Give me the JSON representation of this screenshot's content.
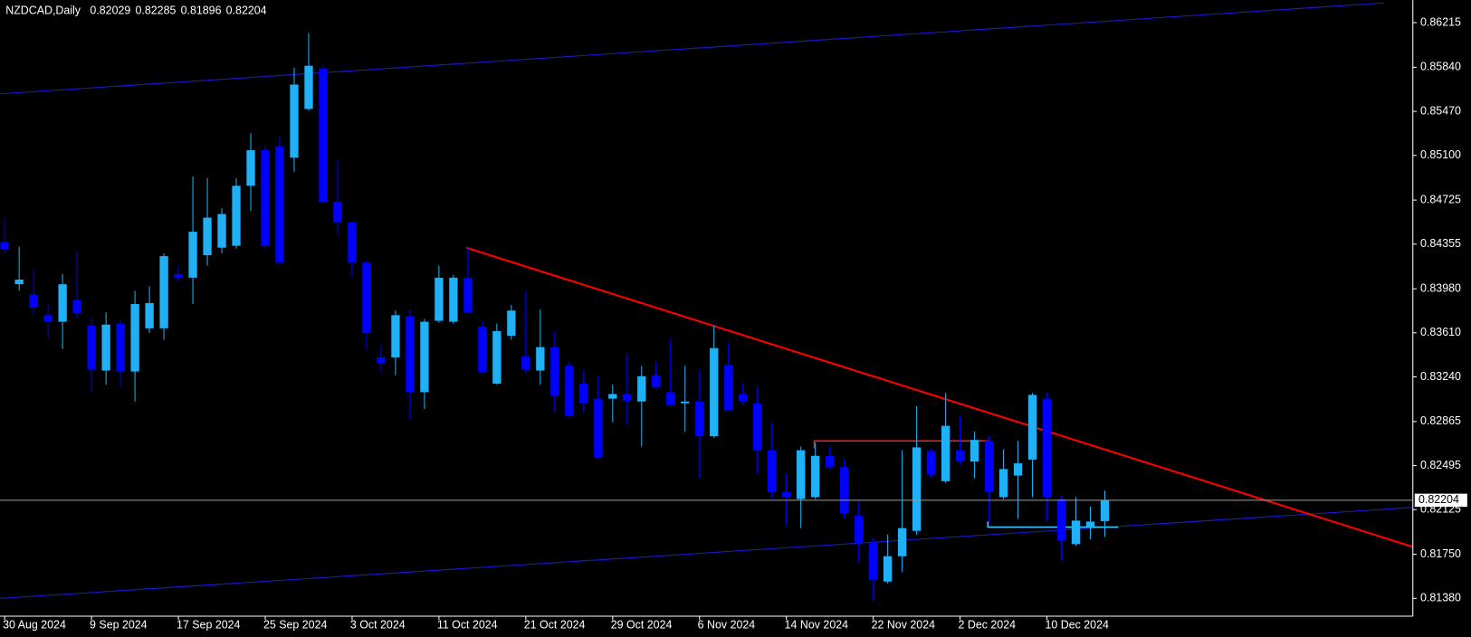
{
  "chart_data": {
    "type": "candlestick",
    "title": "NZDCAD,Daily",
    "x": [
      "30 Aug 2024",
      null,
      null,
      null,
      null,
      null,
      "9 Sep 2024",
      null,
      null,
      null,
      null,
      null,
      "17 Sep 2024",
      null,
      null,
      null,
      null,
      null,
      "25 Sep 2024",
      null,
      null,
      null,
      null,
      null,
      "3 Oct 2024",
      null,
      null,
      null,
      null,
      null,
      "11 Oct 2024",
      null,
      null,
      null,
      null,
      null,
      "21 Oct 2024",
      null,
      null,
      null,
      null,
      null,
      "29 Oct 2024",
      null,
      null,
      null,
      null,
      null,
      "6 Nov 2024",
      null,
      null,
      null,
      null,
      null,
      "14 Nov 2024",
      null,
      null,
      null,
      null,
      null,
      "22 Nov 2024",
      null,
      null,
      null,
      null,
      null,
      "2 Dec 2024",
      null,
      null,
      null,
      null,
      null,
      "10 Dec 2024",
      null,
      null,
      null,
      null
    ],
    "open": [
      0.84372,
      0.84018,
      0.83931,
      0.83758,
      0.83703,
      0.83884,
      0.83671,
      0.83293,
      0.83687,
      0.83285,
      0.83648,
      0.83648,
      0.84104,
      0.84073,
      0.84262,
      0.84325,
      0.84341,
      0.84845,
      0.85144,
      0.85175,
      0.85081,
      0.8549,
      0.85829,
      0.84711,
      0.84538,
      0.84199,
      0.83404,
      0.83404,
      0.8375,
      0.83112,
      0.83711,
      0.83703,
      0.84073,
      0.83663,
      0.83183,
      0.83585,
      0.83411,
      0.83293,
      0.8349,
      0.83333,
      0.83183,
      0.83057,
      0.83057,
      0.83096,
      0.83033,
      0.83254,
      0.83112,
      0.83018,
      0.83033,
      0.82742,
      0.83341,
      0.83096,
      0.83018,
      0.82624,
      0.8227,
      0.82214,
      0.8223,
      0.82577,
      0.82482,
      0.82073,
      0.81852,
      0.81521,
      0.81734,
      0.81947,
      0.82616,
      0.82364,
      0.82624,
      0.82529,
      0.82703,
      0.8223,
      0.82411,
      0.82545,
      0.83057,
      0.82214,
      0.81836,
      0.81978,
      0.82029
    ],
    "high": [
      0.84577,
      0.84333,
      0.84136,
      0.83845,
      0.84104,
      0.84293,
      0.83742,
      0.83782,
      0.83726,
      0.83963,
      0.84002,
      0.84278,
      0.84175,
      0.84923,
      0.84908,
      0.84656,
      0.84908,
      0.85286,
      0.85183,
      0.85262,
      0.85837,
      0.86128,
      0.85853,
      0.85065,
      0.84545,
      0.84215,
      0.83506,
      0.83797,
      0.83805,
      0.83726,
      0.84175,
      0.84097,
      0.84325,
      0.83703,
      0.83687,
      0.83845,
      0.83963,
      0.83805,
      0.83624,
      0.83372,
      0.83293,
      0.83254,
      0.83175,
      0.83435,
      0.83333,
      0.83372,
      0.83569,
      0.83333,
      0.83293,
      0.83671,
      0.8353,
      0.83191,
      0.83159,
      0.8286,
      0.82427,
      0.82655,
      0.82687,
      0.82655,
      0.82545,
      0.82191,
      0.81899,
      0.81915,
      0.82624,
      0.82994,
      0.8264,
      0.83104,
      0.82915,
      0.82781,
      0.82742,
      0.82632,
      0.82703,
      0.83104,
      0.83112,
      0.82246,
      0.8223,
      0.82151,
      0.82285
    ],
    "low": [
      0.84278,
      0.83963,
      0.83766,
      0.83569,
      0.83474,
      0.83726,
      0.83112,
      0.83175,
      0.83159,
      0.83033,
      0.83608,
      0.83553,
      0.84041,
      0.83852,
      0.84175,
      0.84278,
      0.84317,
      0.84632,
      0.84317,
      0.84183,
      0.84963,
      0.85475,
      0.84703,
      0.84435,
      0.84081,
      0.83467,
      0.83285,
      0.83254,
      0.82876,
      0.8297,
      0.83695,
      0.83687,
      0.83774,
      0.8327,
      0.83175,
      0.83553,
      0.8327,
      0.83175,
      0.82939,
      0.829,
      0.82939,
      0.82553,
      0.8286,
      0.82844,
      0.82655,
      0.83136,
      0.82994,
      0.82781,
      0.82388,
      0.82726,
      0.82955,
      0.83002,
      0.82427,
      0.82214,
      0.81994,
      0.8197,
      0.82214,
      0.82466,
      0.82049,
      0.81679,
      0.81364,
      0.81506,
      0.816,
      0.81915,
      0.82388,
      0.82348,
      0.82506,
      0.82388,
      0.8201,
      0.82214,
      0.82049,
      0.8223,
      0.82033,
      0.81695,
      0.81821,
      0.81876,
      0.81896
    ],
    "close": [
      0.84309,
      0.84057,
      0.83821,
      0.83703,
      0.84018,
      0.83774,
      0.83301,
      0.83679,
      0.83285,
      0.83852,
      0.8386,
      0.84254,
      0.84073,
      0.84459,
      0.84577,
      0.84608,
      0.84845,
      0.85144,
      0.84341,
      0.84199,
      0.85695,
      0.85853,
      0.84711,
      0.84538,
      0.84199,
      0.83608,
      0.83356,
      0.83758,
      0.83112,
      0.83703,
      0.84073,
      0.84073,
      0.83782,
      0.83278,
      0.83624,
      0.83797,
      0.83301,
      0.8349,
      0.83081,
      0.82915,
      0.83018,
      0.82561,
      0.83096,
      0.83041,
      0.83246,
      0.83152,
      0.83002,
      0.83033,
      0.82742,
      0.83482,
      0.82963,
      0.83033,
      0.82624,
      0.8227,
      0.8223,
      0.82624,
      0.82577,
      0.82482,
      0.82096,
      0.81852,
      0.81537,
      0.81734,
      0.8197,
      0.82648,
      0.82419,
      0.82829,
      0.82529,
      0.82711,
      0.82277,
      0.82466,
      0.82514,
      0.83089,
      0.8223,
      0.81868,
      0.82033,
      0.82025,
      0.82204
    ],
    "up_color": "#1fb0f5",
    "down_color": "#0000ff",
    "ylim": [
      0.8123,
      0.86404
    ],
    "yticks": [
      0.86215,
      {
        "value": 0.8584,
        "label": "0.85840"
      },
      {
        "value": 0.8547,
        "label": "0.85470"
      },
      {
        "value": 0.851,
        "label": "0.85100"
      },
      0.84725,
      0.84355,
      {
        "value": 0.8398,
        "label": "0.83980"
      },
      {
        "value": 0.8361,
        "label": "0.83610"
      },
      {
        "value": 0.8324,
        "label": "0.83240"
      },
      0.82865,
      0.82495,
      0.82125,
      {
        "value": 0.8175,
        "label": "0.81750"
      },
      {
        "value": 0.8138,
        "label": "0.81380"
      }
    ]
  }
}
